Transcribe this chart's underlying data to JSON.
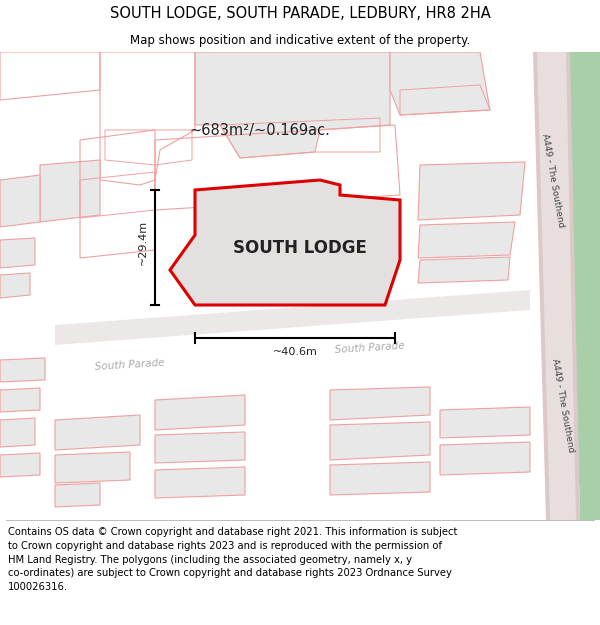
{
  "title": "SOUTH LODGE, SOUTH PARADE, LEDBURY, HR8 2HA",
  "subtitle": "Map shows position and indicative extent of the property.",
  "footer_text": "Contains OS data © Crown copyright and database right 2021. This information is subject\nto Crown copyright and database rights 2023 and is reproduced with the permission of\nHM Land Registry. The polygons (including the associated geometry, namely x, y\nco-ordinates) are subject to Crown copyright and database rights 2023 Ordnance Survey\n100026316.",
  "property_label": "SOUTH LODGE",
  "area_label": "~683m²/~0.169ac.",
  "width_label": "~40.6m",
  "height_label": "~29.4m",
  "road_label_sp1": "South Parade",
  "road_label_sp2": "South Parade",
  "road_label_a449_top": "A449 - The Southend",
  "road_label_a449_bot": "A449 - The Southend",
  "building_fill": "#e8e8e8",
  "building_outline": "#f0a0a0",
  "property_fill": "#e0e0e0",
  "property_border": "#dd0000",
  "green_color": "#8aba8a",
  "road_fill": "#e8e0e0",
  "title_fontsize": 10.5,
  "subtitle_fontsize": 8.5,
  "footer_fontsize": 7.2,
  "map_bg": "#ffffff"
}
